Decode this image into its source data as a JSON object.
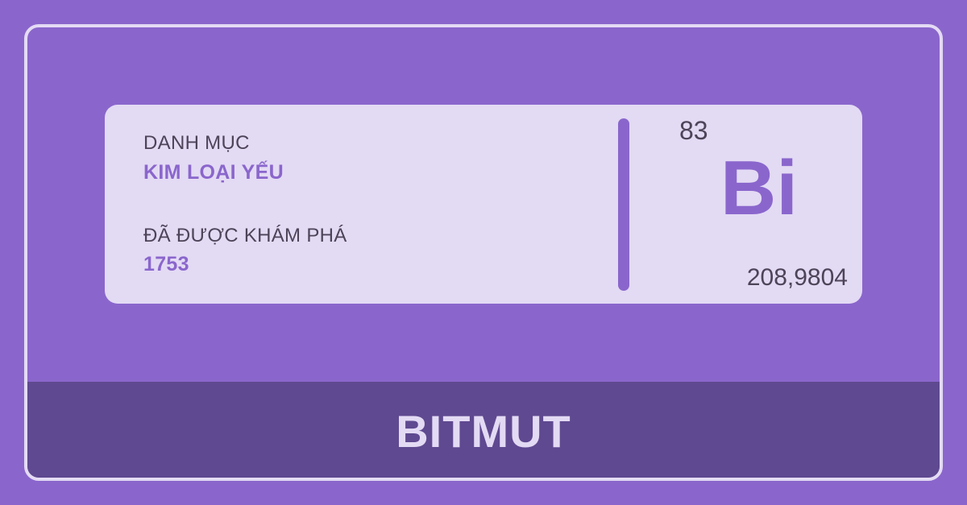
{
  "card": {
    "category_label": "DANH MỤC",
    "category_value": "KIM LOẠI YẾU",
    "discovered_label": "ĐÃ ĐƯỢC KHÁM PHÁ",
    "discovered_value": "1753",
    "atomic_number": "83",
    "symbol": "Bi",
    "atomic_mass": "208,9804"
  },
  "footer": {
    "element_name": "BITMUT"
  },
  "colors": {
    "background": "#8a66cc",
    "card": "#e3daf4",
    "accent": "#8a66cc",
    "footer": "#5f4990",
    "text": "#4d4458"
  }
}
